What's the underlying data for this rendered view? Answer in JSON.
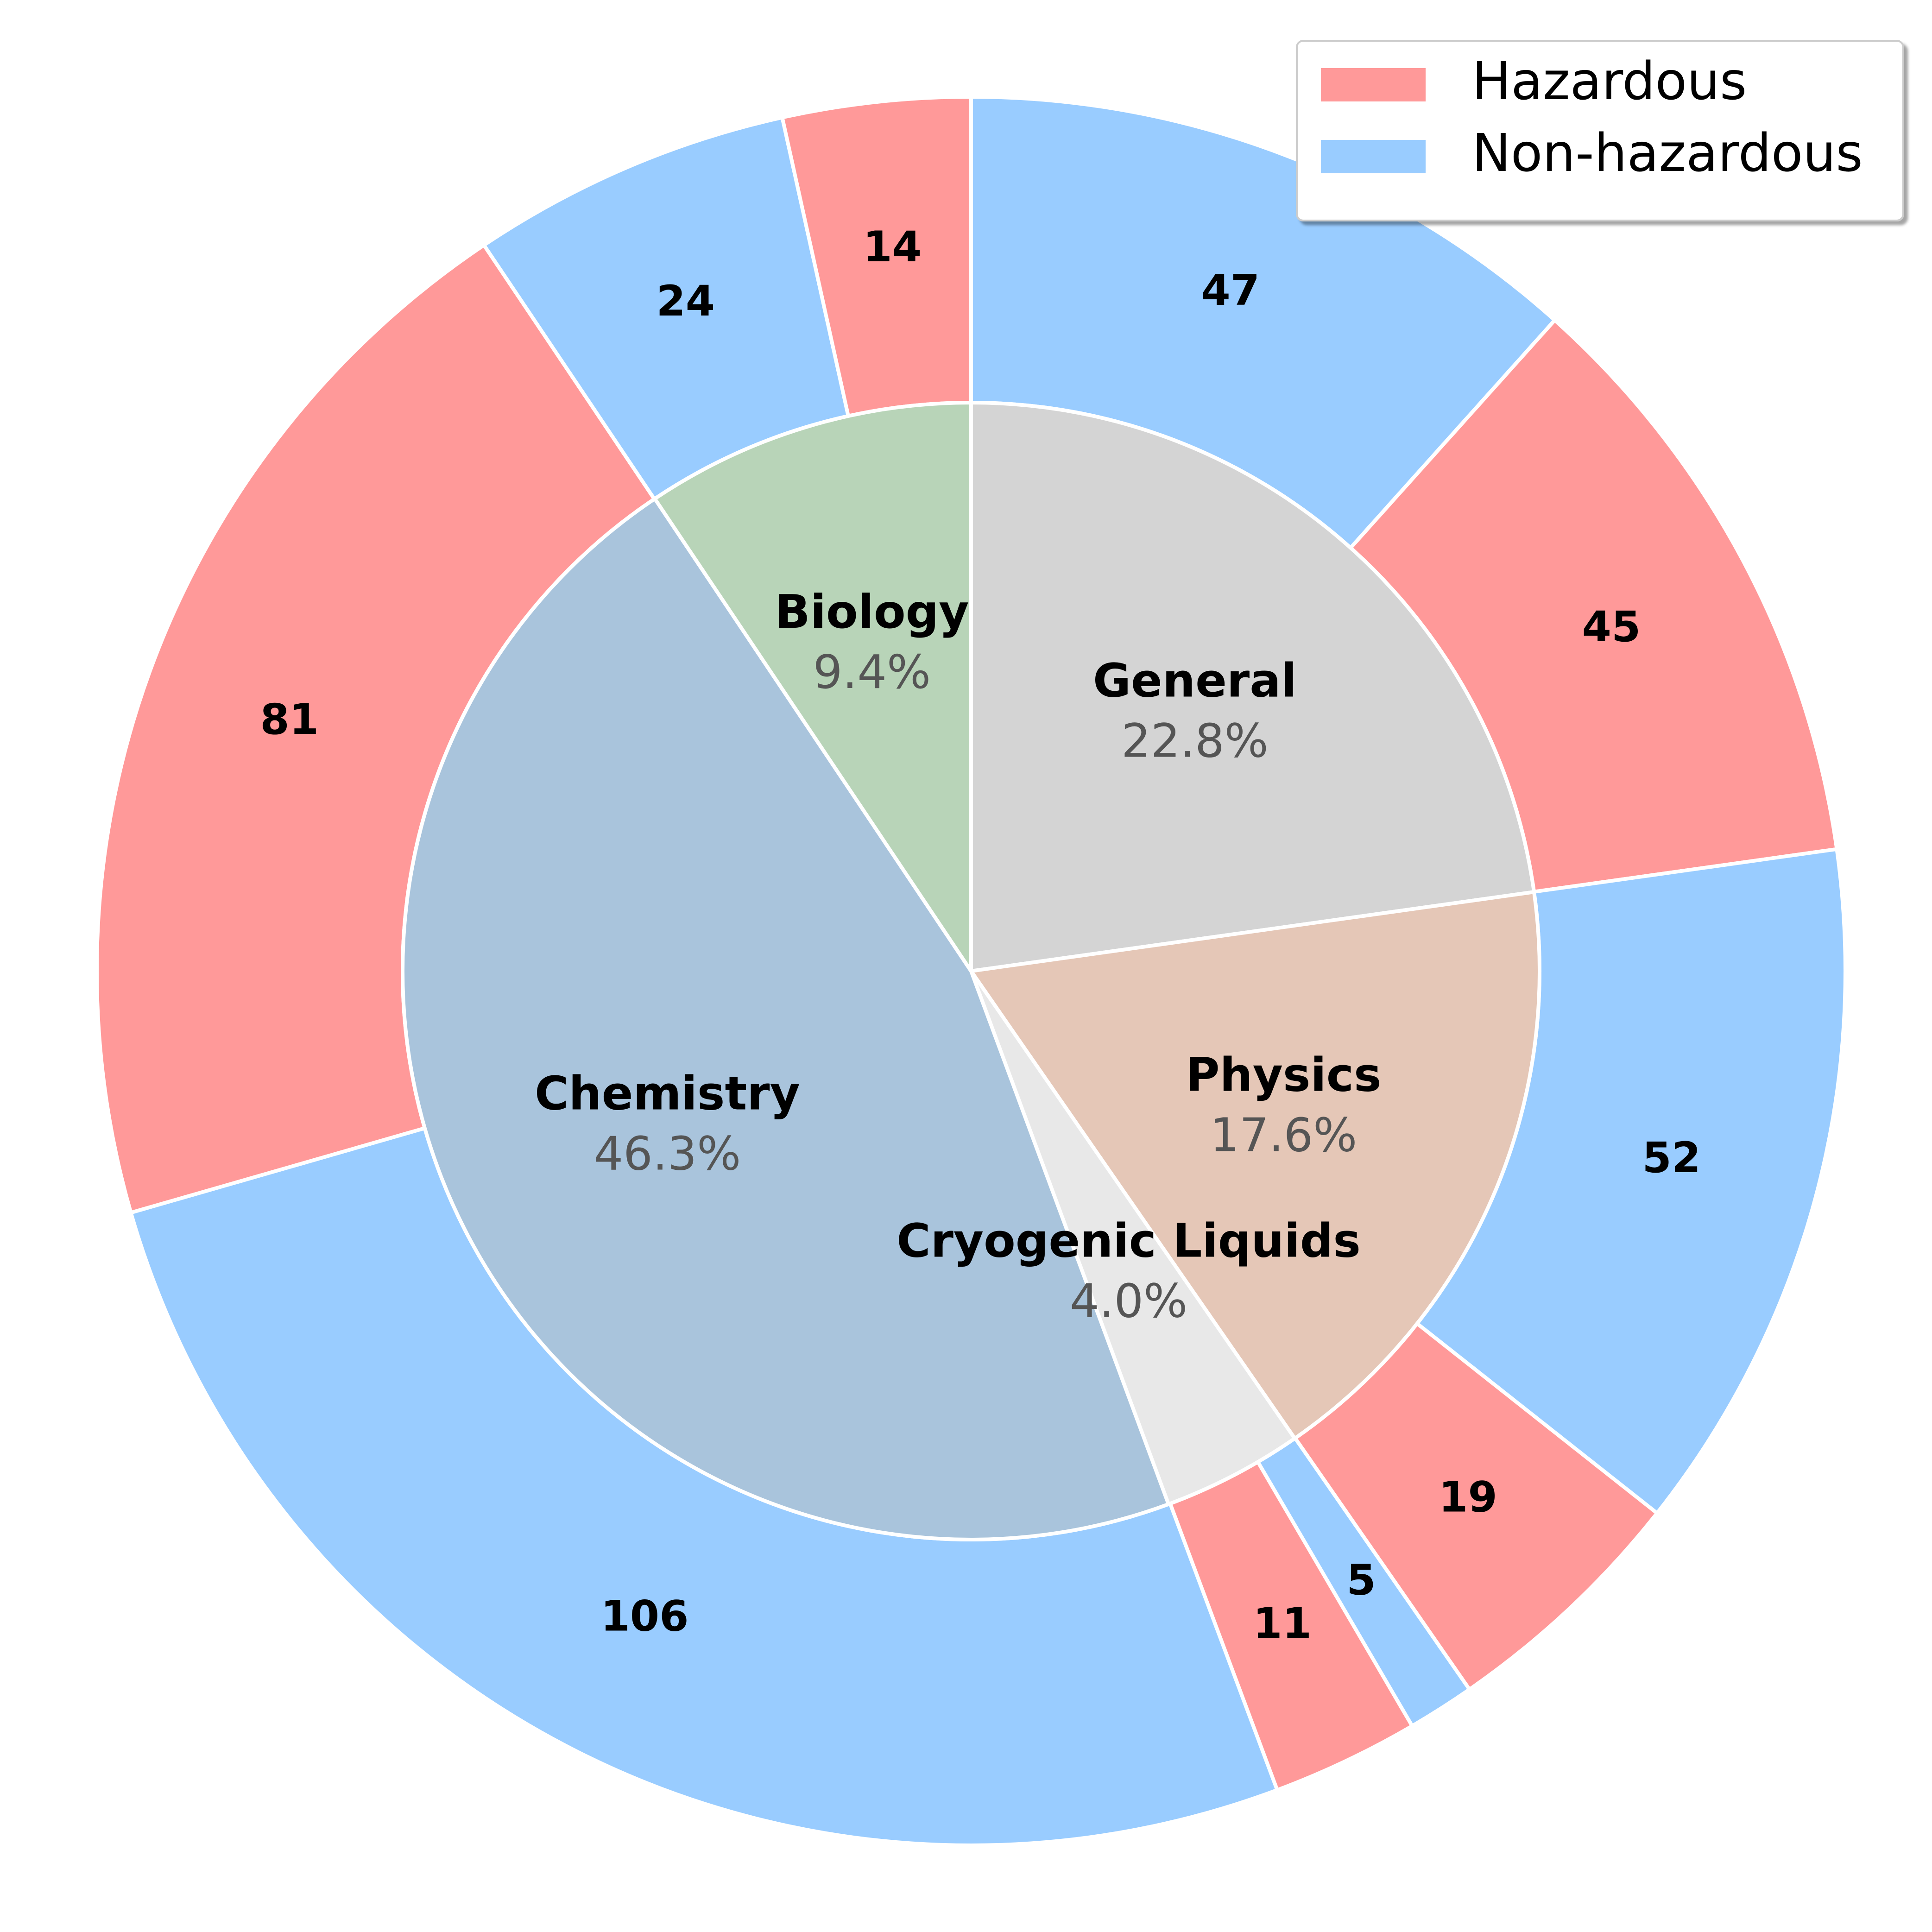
{
  "chart_data": {
    "type": "nested-pie",
    "categories": [
      "General",
      "Physics",
      "Cryogenic Liquids",
      "Chemistry",
      "Biology"
    ],
    "values": [
      22.8,
      17.6,
      4.0,
      46.3,
      9.4
    ],
    "value_labels": [
      "22.8%",
      "17.6%",
      "4.0%",
      "46.3%",
      "9.4%"
    ],
    "colors": [
      "#d4d4d4",
      "#e5c7b7",
      "#e8e8e8",
      "#a9c4dc",
      "#b8d4b8"
    ],
    "series": [
      {
        "name": "Hazardous",
        "color": "#ff9999",
        "values": [
          45,
          19,
          11,
          81,
          14
        ]
      },
      {
        "name": "Non-hazardous",
        "color": "#99ccff",
        "values": [
          47,
          52,
          5,
          106,
          24
        ]
      }
    ],
    "legend": "upper right"
  }
}
